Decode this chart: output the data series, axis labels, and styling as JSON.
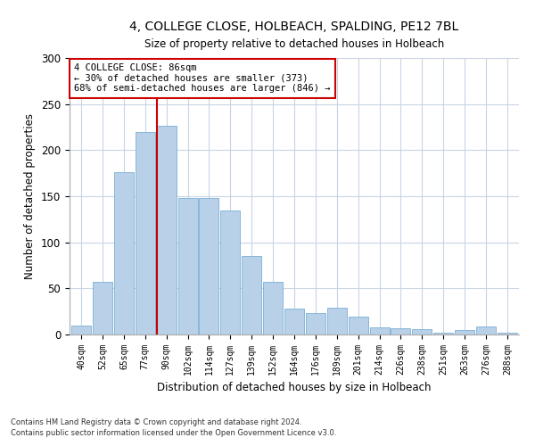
{
  "title1": "4, COLLEGE CLOSE, HOLBEACH, SPALDING, PE12 7BL",
  "title2": "Size of property relative to detached houses in Holbeach",
  "xlabel": "Distribution of detached houses by size in Holbeach",
  "ylabel": "Number of detached properties",
  "categories": [
    "40sqm",
    "52sqm",
    "65sqm",
    "77sqm",
    "90sqm",
    "102sqm",
    "114sqm",
    "127sqm",
    "139sqm",
    "152sqm",
    "164sqm",
    "176sqm",
    "189sqm",
    "201sqm",
    "214sqm",
    "226sqm",
    "238sqm",
    "251sqm",
    "263sqm",
    "276sqm",
    "288sqm"
  ],
  "values": [
    10,
    57,
    176,
    220,
    226,
    148,
    148,
    135,
    85,
    57,
    28,
    23,
    29,
    19,
    8,
    7,
    6,
    2,
    5,
    9,
    2
  ],
  "bar_color": "#b8d0e8",
  "bar_edge_color": "#7aafd4",
  "vline_color": "#cc0000",
  "annotation_title": "4 COLLEGE CLOSE: 86sqm",
  "annotation_line1": "← 30% of detached houses are smaller (373)",
  "annotation_line2": "68% of semi-detached houses are larger (846) →",
  "annotation_box_color": "#ffffff",
  "annotation_box_edge": "#cc0000",
  "ylim": [
    0,
    300
  ],
  "yticks": [
    0,
    50,
    100,
    150,
    200,
    250,
    300
  ],
  "footnote1": "Contains HM Land Registry data © Crown copyright and database right 2024.",
  "footnote2": "Contains public sector information licensed under the Open Government Licence v3.0.",
  "bg_color": "#ffffff",
  "grid_color": "#c8d4e4"
}
